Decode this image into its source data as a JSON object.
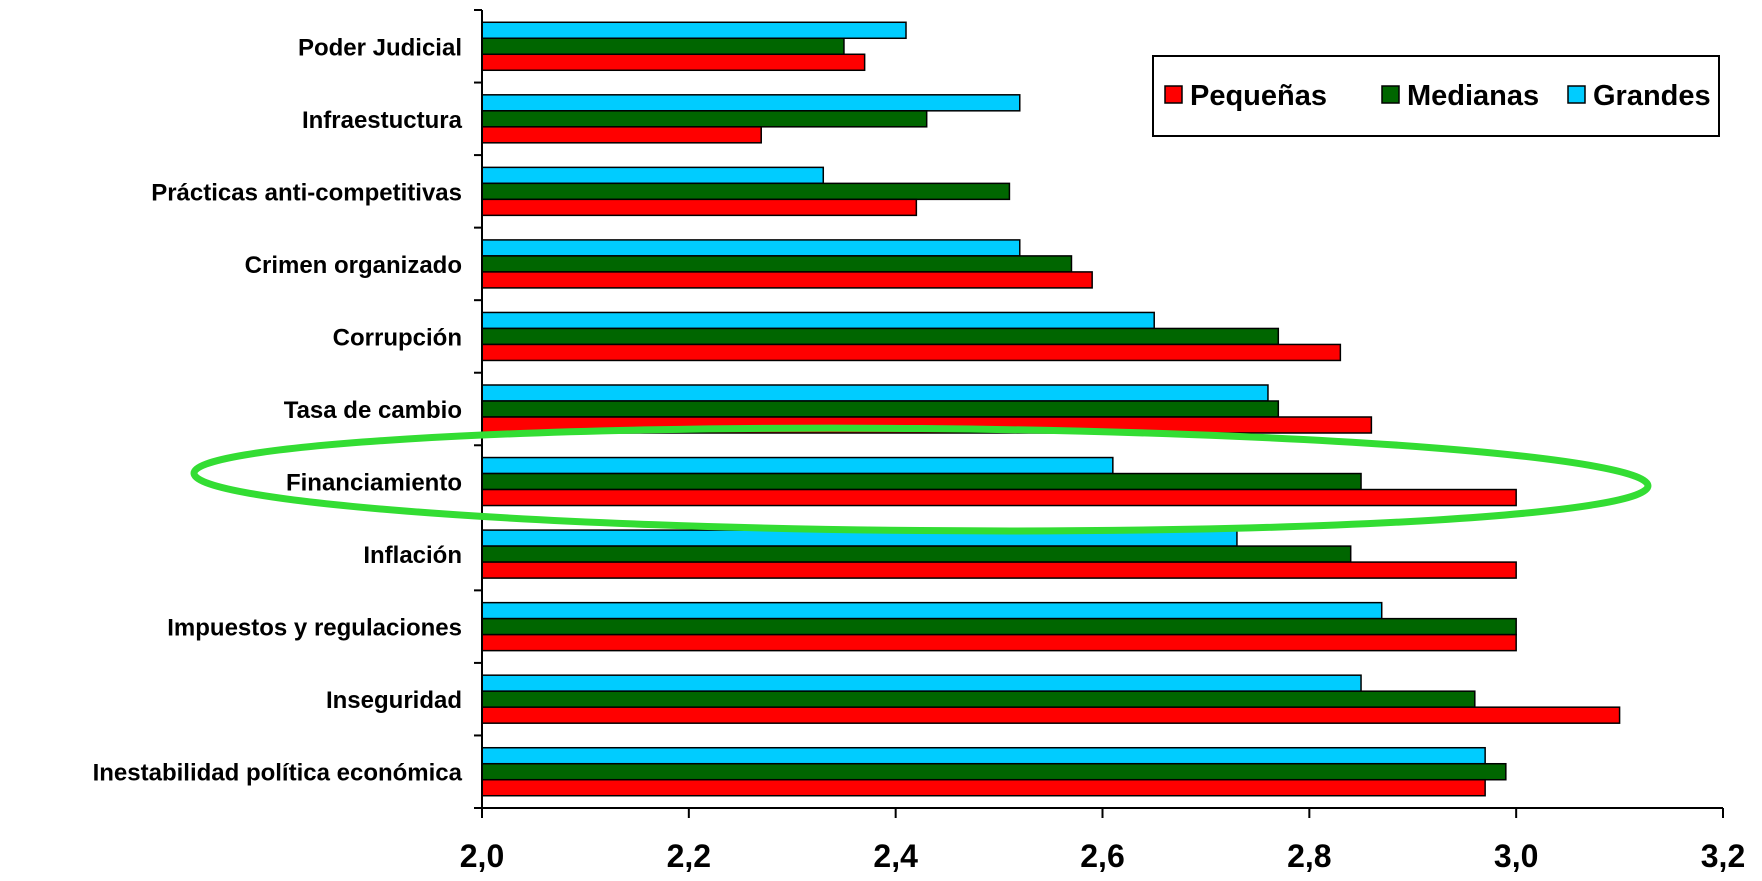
{
  "chart_data": {
    "type": "bar",
    "orientation": "horizontal",
    "categories": [
      "Poder Judicial",
      "Infraestuctura",
      "Prácticas anti-competitivas",
      "Crimen organizado",
      "Corrupción",
      "Tasa de cambio",
      "Financiamiento",
      "Inflación",
      "Impuestos y regulaciones",
      "Inseguridad",
      "Inestabilidad política económica"
    ],
    "series": [
      {
        "name": "Pequeñas",
        "color": "#ff0000",
        "values": [
          2.37,
          2.27,
          2.42,
          2.59,
          2.83,
          2.86,
          3.0,
          3.0,
          3.0,
          3.1,
          2.97
        ]
      },
      {
        "name": "Medianas",
        "color": "#006600",
        "values": [
          2.35,
          2.43,
          2.51,
          2.57,
          2.77,
          2.77,
          2.85,
          2.84,
          3.0,
          2.96,
          2.99
        ]
      },
      {
        "name": "Grandes",
        "color": "#00ccff",
        "values": [
          2.41,
          2.52,
          2.33,
          2.52,
          2.65,
          2.76,
          2.61,
          2.73,
          2.87,
          2.85,
          2.97
        ]
      }
    ],
    "xlim": [
      2.0,
      3.2
    ],
    "xticks": [
      "2,0",
      "2,2",
      "2,4",
      "2,6",
      "2,8",
      "3,0",
      "3,2"
    ],
    "highlight": {
      "category": "Financiamiento",
      "shape": "ellipse",
      "color": "#33dd33"
    },
    "legend_position": "top-right",
    "grid": false
  }
}
